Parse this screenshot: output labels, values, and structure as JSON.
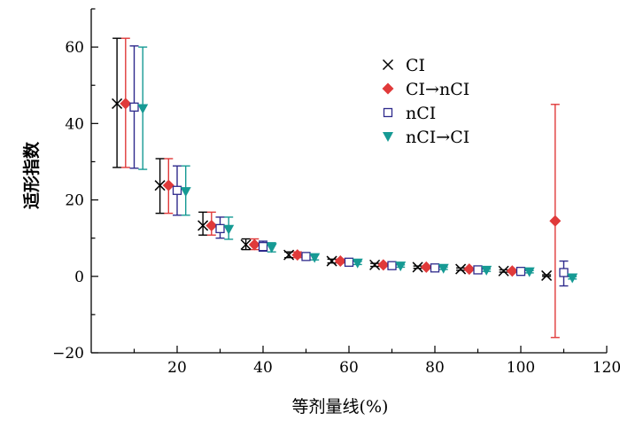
{
  "chart_data": {
    "type": "scatter",
    "xlabel": "等剂量线(%)",
    "ylabel": "适形指数",
    "xlim": [
      0,
      120
    ],
    "ylim": [
      -20,
      70
    ],
    "xticks": [
      20,
      40,
      60,
      80,
      100,
      120
    ],
    "yticks": [
      -20,
      0,
      20,
      40,
      60
    ],
    "x_tick_labels": [
      "20",
      "40",
      "60",
      "80",
      "100",
      "120"
    ],
    "y_tick_labels": [
      "−20",
      "0",
      "20",
      "40",
      "60"
    ],
    "grid": false,
    "legend_position": "top-right",
    "series": [
      {
        "name": "CI",
        "marker": "x",
        "marker_color": "#000000",
        "error_color": "#000000",
        "points": [
          {
            "x": 6,
            "y": 45.2,
            "lo": 28.5,
            "hi": 62.3
          },
          {
            "x": 16,
            "y": 23.8,
            "lo": 16.5,
            "hi": 30.8
          },
          {
            "x": 26,
            "y": 13.3,
            "lo": 10.8,
            "hi": 16.8
          },
          {
            "x": 36,
            "y": 8.3,
            "lo": 7.0,
            "hi": 9.8
          },
          {
            "x": 46,
            "y": 5.6,
            "lo": 4.9,
            "hi": 6.4
          },
          {
            "x": 56,
            "y": 4.0,
            "lo": 3.5,
            "hi": 4.5
          },
          {
            "x": 66,
            "y": 3.0,
            "lo": 2.6,
            "hi": 3.4
          },
          {
            "x": 76,
            "y": 2.4,
            "lo": 2.1,
            "hi": 2.7
          },
          {
            "x": 86,
            "y": 1.9,
            "lo": 1.6,
            "hi": 2.2
          },
          {
            "x": 96,
            "y": 1.4,
            "lo": 1.1,
            "hi": 1.7
          },
          {
            "x": 106,
            "y": 0.2,
            "lo": 0.0,
            "hi": 0.4
          }
        ]
      },
      {
        "name": "CI→nCI",
        "marker": "diamond",
        "marker_color": "#e03a3a",
        "error_color": "#e03a3a",
        "points": [
          {
            "x": 8,
            "y": 45.2,
            "lo": 28.5,
            "hi": 62.3
          },
          {
            "x": 18,
            "y": 23.8,
            "lo": 16.5,
            "hi": 30.8
          },
          {
            "x": 28,
            "y": 13.3,
            "lo": 10.8,
            "hi": 16.8
          },
          {
            "x": 38,
            "y": 8.3,
            "lo": 7.0,
            "hi": 9.8
          },
          {
            "x": 48,
            "y": 5.6,
            "lo": 4.9,
            "hi": 6.4
          },
          {
            "x": 58,
            "y": 4.0,
            "lo": 3.5,
            "hi": 4.5
          },
          {
            "x": 68,
            "y": 3.0,
            "lo": 2.6,
            "hi": 3.4
          },
          {
            "x": 78,
            "y": 2.4,
            "lo": 2.1,
            "hi": 2.7
          },
          {
            "x": 88,
            "y": 1.9,
            "lo": 1.6,
            "hi": 2.2
          },
          {
            "x": 98,
            "y": 1.4,
            "lo": 1.1,
            "hi": 1.7
          },
          {
            "x": 108,
            "y": 14.5,
            "lo": -16.0,
            "hi": 45.0
          }
        ]
      },
      {
        "name": "nCI",
        "marker": "square-open",
        "marker_color": "#2e2a8c",
        "error_color": "#2e2a8c",
        "points": [
          {
            "x": 10,
            "y": 44.3,
            "lo": 28.3,
            "hi": 60.3
          },
          {
            "x": 20,
            "y": 22.5,
            "lo": 16.0,
            "hi": 28.9
          },
          {
            "x": 30,
            "y": 12.5,
            "lo": 10.0,
            "hi": 15.5
          },
          {
            "x": 40,
            "y": 7.8,
            "lo": 6.6,
            "hi": 9.2
          },
          {
            "x": 50,
            "y": 5.2,
            "lo": 4.6,
            "hi": 5.9
          },
          {
            "x": 60,
            "y": 3.7,
            "lo": 3.3,
            "hi": 4.2
          },
          {
            "x": 70,
            "y": 2.8,
            "lo": 2.5,
            "hi": 3.2
          },
          {
            "x": 80,
            "y": 2.2,
            "lo": 1.9,
            "hi": 2.6
          },
          {
            "x": 90,
            "y": 1.7,
            "lo": 1.4,
            "hi": 2.0
          },
          {
            "x": 100,
            "y": 1.3,
            "lo": 1.0,
            "hi": 1.6
          },
          {
            "x": 110,
            "y": 1.0,
            "lo": -2.5,
            "hi": 4.0
          }
        ]
      },
      {
        "name": "nCI→CI",
        "marker": "triangle-down",
        "marker_color": "#169a94",
        "error_color": "#169a94",
        "points": [
          {
            "x": 12,
            "y": 43.9,
            "lo": 28.0,
            "hi": 60.0
          },
          {
            "x": 22,
            "y": 22.2,
            "lo": 16.0,
            "hi": 28.9
          },
          {
            "x": 32,
            "y": 12.3,
            "lo": 9.7,
            "hi": 15.5
          },
          {
            "x": 42,
            "y": 7.5,
            "lo": 6.4,
            "hi": 8.8
          },
          {
            "x": 52,
            "y": 4.9,
            "lo": 4.3,
            "hi": 5.6
          },
          {
            "x": 62,
            "y": 3.5,
            "lo": 3.1,
            "hi": 3.9
          },
          {
            "x": 72,
            "y": 2.7,
            "lo": 2.4,
            "hi": 3.0
          },
          {
            "x": 82,
            "y": 2.1,
            "lo": 1.8,
            "hi": 2.4
          },
          {
            "x": 92,
            "y": 1.6,
            "lo": 1.3,
            "hi": 1.9
          },
          {
            "x": 102,
            "y": 1.2,
            "lo": 0.9,
            "hi": 1.5
          },
          {
            "x": 112,
            "y": -0.4,
            "lo": -0.7,
            "hi": -0.1
          }
        ]
      }
    ]
  }
}
